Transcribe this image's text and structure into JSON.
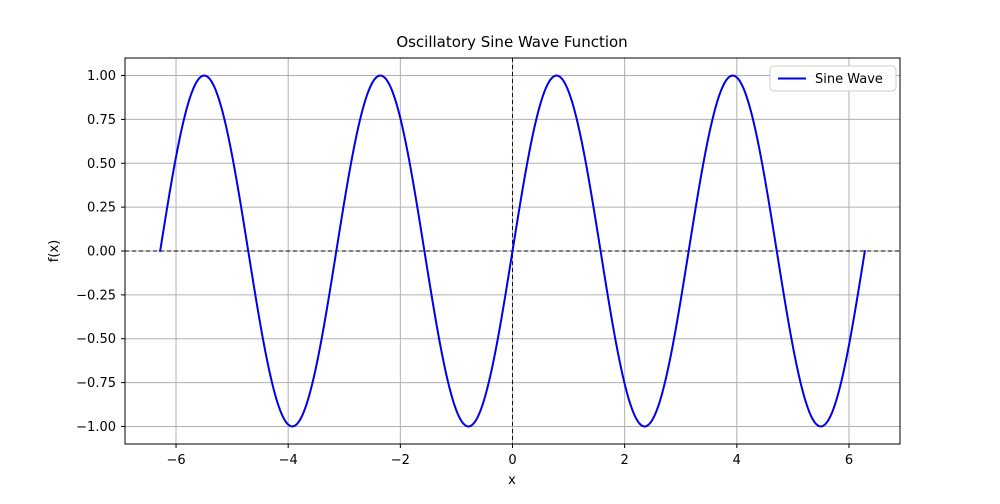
{
  "chart_data": {
    "type": "line",
    "title": "Oscillatory Sine Wave Function",
    "xlabel": "x",
    "ylabel": "f(x)",
    "grid": true,
    "legend_position": "upper right",
    "legend": [
      {
        "label": "Sine Wave",
        "color": "#0000EE"
      }
    ],
    "xlim": [
      -6.91,
      6.91
    ],
    "ylim": [
      -1.1,
      1.1
    ],
    "xticks": [
      -6,
      -4,
      -2,
      0,
      2,
      4,
      6
    ],
    "xtick_labels": [
      "−6",
      "−4",
      "−2",
      "0",
      "2",
      "4",
      "6"
    ],
    "yticks": [
      -1,
      -0.75,
      -0.5,
      -0.25,
      0,
      0.25,
      0.5,
      0.75,
      1
    ],
    "ytick_labels": [
      "−1.00",
      "−0.75",
      "−0.50",
      "−0.25",
      "0.00",
      "0.25",
      "0.50",
      "0.75",
      "1.00"
    ],
    "reference_lines": {
      "horizontal_y": 0,
      "vertical_x": 0,
      "style": "dashed",
      "color": "#000000"
    },
    "colors": {
      "grid": "#b0b0b0",
      "spine": "#000000",
      "background": "#ffffff",
      "legend_border": "#cccccc"
    },
    "series": [
      {
        "name": "Sine Wave",
        "color": "#0000EE",
        "line_width": 2,
        "function": "f(x) = sin(2x)",
        "amplitude": 1,
        "angular_frequency": 2,
        "x_start": -6.2832,
        "x_end": 6.2832,
        "sample_x": [
          -6.2832,
          -5.8905,
          -5.4978,
          -5.1051,
          -4.7124,
          -4.3197,
          -3.927,
          -3.5343,
          -3.1416,
          -2.7489,
          -2.3562,
          -1.9635,
          -1.5708,
          -1.1781,
          -0.7854,
          -0.3927,
          0,
          0.3927,
          0.7854,
          1.1781,
          1.5708,
          1.9635,
          2.3562,
          2.7489,
          3.1416,
          3.5343,
          3.927,
          4.3197,
          4.7124,
          5.1051,
          5.4978,
          5.8905,
          6.2832
        ],
        "sample_y": [
          0,
          0.7071,
          1,
          0.7071,
          0,
          -0.7071,
          -1,
          -0.7071,
          0,
          0.7071,
          1,
          0.7071,
          0,
          -0.7071,
          -1,
          -0.7071,
          0,
          0.7071,
          1,
          0.7071,
          0,
          -0.7071,
          -1,
          -0.7071,
          0,
          0.7071,
          1,
          0.7071,
          0,
          -0.7071,
          -1,
          -0.7071,
          0
        ]
      }
    ]
  }
}
